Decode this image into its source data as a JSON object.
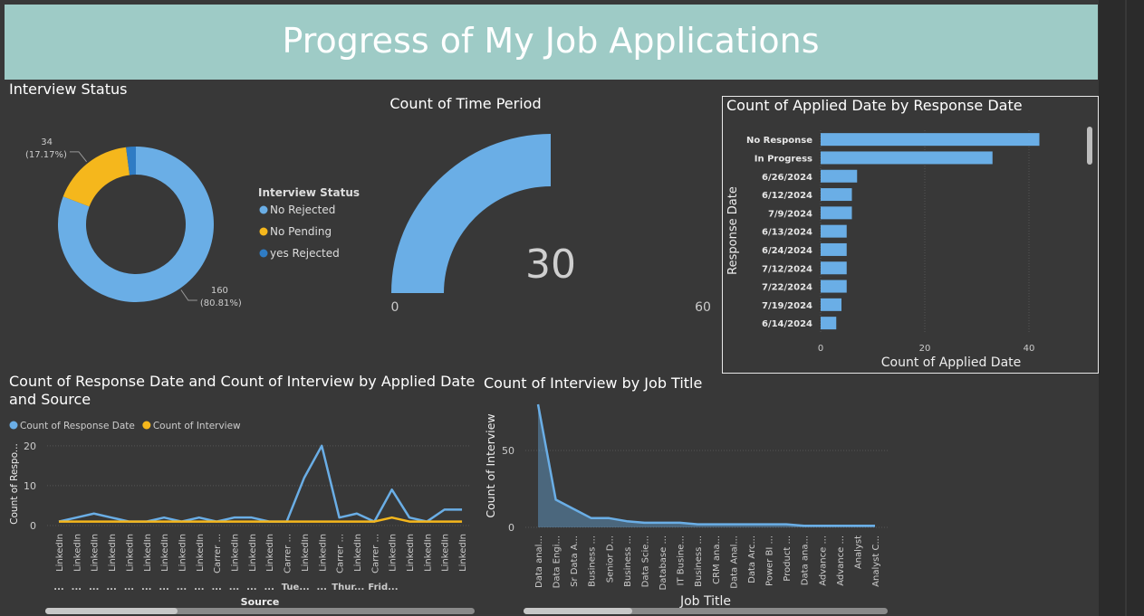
{
  "title": "Progress of My Job Applications",
  "chart_data": [
    {
      "type": "pie",
      "donut": true,
      "title": "Interview Status",
      "legend_title": "Interview Status",
      "categories": [
        "No Rejected",
        "No Pending",
        "yes Rejected"
      ],
      "values": [
        160,
        34,
        4
      ],
      "value_labels": [
        "160",
        "34",
        null
      ],
      "percent_labels": [
        "(80.81%)",
        "(17.17%)",
        null
      ],
      "colors": [
        "#6aaee6",
        "#f5b71c",
        "#2f7cc4"
      ]
    },
    {
      "type": "gauge",
      "title": "Count of Time Period",
      "value": 30,
      "ylim": [
        0,
        60
      ],
      "color": "#6aaee6"
    },
    {
      "type": "bar",
      "orientation": "horizontal",
      "title": "Count of Applied Date by Response Date",
      "categories": [
        "No Response",
        "In Progress",
        "6/26/2024",
        "6/12/2024",
        "7/9/2024",
        "6/13/2024",
        "6/24/2024",
        "7/12/2024",
        "7/22/2024",
        "7/19/2024",
        "6/14/2024"
      ],
      "values": [
        42,
        33,
        7,
        6,
        6,
        5,
        5,
        5,
        5,
        4,
        3
      ],
      "color": "#6aaee6",
      "xlim": [
        0,
        50
      ],
      "xticks": [
        0,
        20,
        40
      ],
      "xlabel": "Count of Applied Date",
      "ylabel": "Response Date",
      "grid": true
    },
    {
      "type": "line",
      "title": "Count of Response Date and Count of Interview by Applied Date and Source",
      "categories": [
        "LinkedIn",
        "LinkedIn",
        "LinkedIn",
        "LinkedIn",
        "LinkedIn",
        "LinkedIn",
        "LinkedIn",
        "LinkedIn",
        "LinkedIn",
        "Carrer ...",
        "LinkedIn",
        "LinkedIn",
        "LinkedIn",
        "Carrer ...",
        "LinkedIn",
        "LinkedIn",
        "Carrer ...",
        "LinkedIn",
        "Carrer ...",
        "LinkedIn",
        "LinkedIn",
        "LinkedIn",
        "LinkedIn",
        "LinkedIn"
      ],
      "group_labels": [
        "...",
        "...",
        "...",
        "...",
        "...",
        "...",
        "...",
        "...",
        "...",
        "...",
        "...",
        "...",
        "...",
        "Tue...",
        null,
        "...",
        "Thur...",
        null,
        "Frid...",
        null,
        null,
        null,
        null,
        null
      ],
      "series": [
        {
          "name": "Count of Response Date",
          "color": "#6aaee6",
          "values": [
            1,
            2,
            3,
            2,
            1,
            1,
            2,
            1,
            2,
            1,
            2,
            2,
            1,
            1,
            12,
            20,
            2,
            3,
            1,
            9,
            2,
            1,
            4,
            4
          ]
        },
        {
          "name": "Count of Interview",
          "color": "#f5b71c",
          "values": [
            1,
            1,
            1,
            1,
            1,
            1,
            1,
            1,
            1,
            1,
            1,
            1,
            1,
            1,
            1,
            1,
            1,
            1,
            1,
            2,
            1,
            1,
            1,
            1
          ]
        }
      ],
      "ylim": [
        0,
        22
      ],
      "yticks": [
        0,
        10,
        20
      ],
      "xlabel": "Source",
      "ylabel": "Count of Respo...",
      "grid": true
    },
    {
      "type": "area",
      "title": "Count of Interview by Job Title",
      "categories": [
        "Data anal...",
        "Data Engi...",
        "Sr Data A...",
        "Business ...",
        "Senior D...",
        "Business ...",
        "Data Scie...",
        "Database ...",
        "IT Busine...",
        "Business ...",
        "CRM ana...",
        "Data Anal...",
        "Data Arc...",
        "Power BI ...",
        "Product ...",
        "Data ana...",
        "Advance ...",
        "Advance ...",
        "Analyst",
        "Analyst C..."
      ],
      "values": [
        80,
        18,
        12,
        6,
        6,
        4,
        3,
        3,
        3,
        2,
        2,
        2,
        2,
        2,
        2,
        1,
        1,
        1,
        1,
        1
      ],
      "color": "#6aaee6",
      "ylim": [
        0,
        80
      ],
      "yticks": [
        0,
        50
      ],
      "xlabel": "Job Title",
      "ylabel": "Count of Interview",
      "grid": true
    }
  ]
}
